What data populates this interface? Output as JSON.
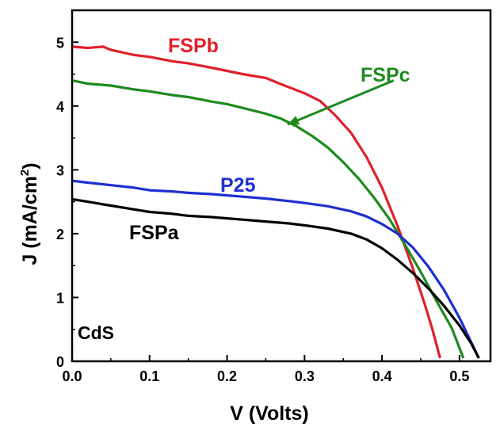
{
  "chart_data": {
    "type": "line",
    "xlabel": "V (Volts)",
    "ylabel_main": "J (mA/cm",
    "ylabel_sup": "2",
    "ylabel_close": ")",
    "xlim": [
      0.0,
      0.54
    ],
    "ylim": [
      0,
      5.5
    ],
    "x_ticks": [
      "0.0",
      "0.1",
      "0.2",
      "0.3",
      "0.4",
      "0.5"
    ],
    "y_ticks": [
      "0",
      "1",
      "2",
      "3",
      "4",
      "5"
    ],
    "grid": false,
    "annotation": "CdS",
    "series": [
      {
        "name": "FSPb",
        "color": "#e0202a",
        "points": [
          [
            0.0,
            4.93
          ],
          [
            0.02,
            4.91
          ],
          [
            0.04,
            4.93
          ],
          [
            0.05,
            4.88
          ],
          [
            0.08,
            4.8
          ],
          [
            0.1,
            4.77
          ],
          [
            0.13,
            4.7
          ],
          [
            0.15,
            4.67
          ],
          [
            0.18,
            4.6
          ],
          [
            0.2,
            4.55
          ],
          [
            0.22,
            4.5
          ],
          [
            0.25,
            4.44
          ],
          [
            0.27,
            4.34
          ],
          [
            0.3,
            4.2
          ],
          [
            0.32,
            4.08
          ],
          [
            0.34,
            3.85
          ],
          [
            0.36,
            3.58
          ],
          [
            0.38,
            3.2
          ],
          [
            0.4,
            2.72
          ],
          [
            0.42,
            2.12
          ],
          [
            0.44,
            1.45
          ],
          [
            0.455,
            0.9
          ],
          [
            0.465,
            0.5
          ],
          [
            0.475,
            0.05
          ]
        ]
      },
      {
        "name": "FSPc",
        "color": "#1e8a1e",
        "points": [
          [
            0.0,
            4.4
          ],
          [
            0.02,
            4.35
          ],
          [
            0.05,
            4.32
          ],
          [
            0.08,
            4.26
          ],
          [
            0.1,
            4.23
          ],
          [
            0.13,
            4.17
          ],
          [
            0.15,
            4.14
          ],
          [
            0.18,
            4.07
          ],
          [
            0.2,
            4.03
          ],
          [
            0.22,
            3.97
          ],
          [
            0.25,
            3.88
          ],
          [
            0.27,
            3.8
          ],
          [
            0.29,
            3.68
          ],
          [
            0.31,
            3.53
          ],
          [
            0.33,
            3.35
          ],
          [
            0.35,
            3.12
          ],
          [
            0.37,
            2.86
          ],
          [
            0.39,
            2.56
          ],
          [
            0.41,
            2.22
          ],
          [
            0.43,
            1.82
          ],
          [
            0.45,
            1.4
          ],
          [
            0.47,
            0.95
          ],
          [
            0.49,
            0.52
          ],
          [
            0.505,
            0.05
          ]
        ]
      },
      {
        "name": "P25",
        "color": "#1f2fd0",
        "points": [
          [
            0.0,
            2.83
          ],
          [
            0.02,
            2.8
          ],
          [
            0.05,
            2.76
          ],
          [
            0.08,
            2.72
          ],
          [
            0.1,
            2.68
          ],
          [
            0.13,
            2.66
          ],
          [
            0.15,
            2.64
          ],
          [
            0.18,
            2.62
          ],
          [
            0.2,
            2.6
          ],
          [
            0.22,
            2.58
          ],
          [
            0.25,
            2.55
          ],
          [
            0.28,
            2.51
          ],
          [
            0.3,
            2.48
          ],
          [
            0.33,
            2.43
          ],
          [
            0.36,
            2.35
          ],
          [
            0.38,
            2.27
          ],
          [
            0.4,
            2.15
          ],
          [
            0.42,
            2.0
          ],
          [
            0.44,
            1.78
          ],
          [
            0.46,
            1.48
          ],
          [
            0.48,
            1.12
          ],
          [
            0.5,
            0.68
          ],
          [
            0.515,
            0.3
          ],
          [
            0.525,
            0.05
          ]
        ]
      },
      {
        "name": "FSPa",
        "color": "#000000",
        "points": [
          [
            0.0,
            2.54
          ],
          [
            0.02,
            2.5
          ],
          [
            0.05,
            2.44
          ],
          [
            0.08,
            2.38
          ],
          [
            0.1,
            2.34
          ],
          [
            0.13,
            2.31
          ],
          [
            0.15,
            2.28
          ],
          [
            0.18,
            2.26
          ],
          [
            0.2,
            2.24
          ],
          [
            0.22,
            2.22
          ],
          [
            0.25,
            2.19
          ],
          [
            0.28,
            2.16
          ],
          [
            0.3,
            2.13
          ],
          [
            0.33,
            2.08
          ],
          [
            0.36,
            2.0
          ],
          [
            0.38,
            1.91
          ],
          [
            0.4,
            1.77
          ],
          [
            0.42,
            1.59
          ],
          [
            0.44,
            1.38
          ],
          [
            0.46,
            1.14
          ],
          [
            0.48,
            0.87
          ],
          [
            0.5,
            0.56
          ],
          [
            0.515,
            0.28
          ],
          [
            0.525,
            0.05
          ]
        ]
      }
    ],
    "series_labels": [
      {
        "text": "FSPb",
        "color": "#e0202a"
      },
      {
        "text": "FSPc",
        "color": "#1e8a1e"
      },
      {
        "text": "P25",
        "color": "#1f2fd0"
      },
      {
        "text": "FSPa",
        "color": "#000000"
      }
    ],
    "callout": {
      "color": "#1e8a1e",
      "from": [
        0.415,
        4.4
      ],
      "to": [
        0.278,
        3.71
      ]
    }
  }
}
